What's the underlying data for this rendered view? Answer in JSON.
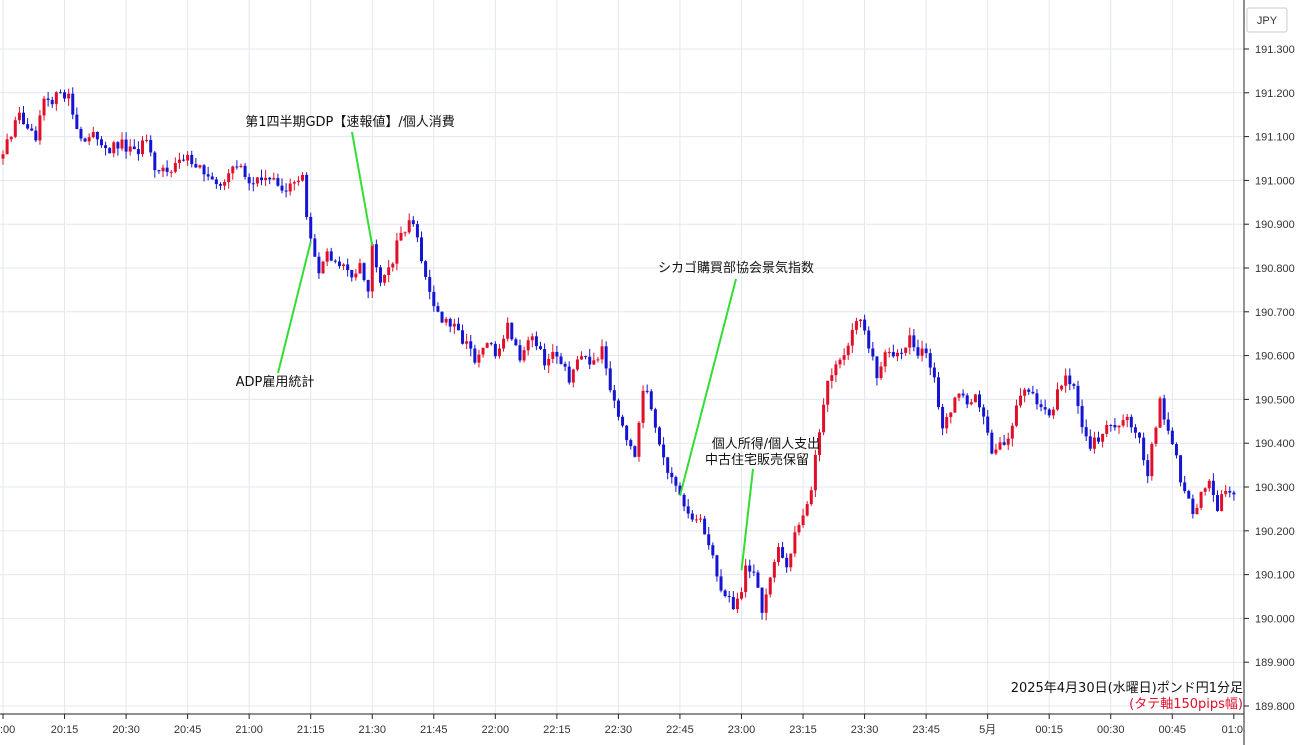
{
  "chart_data": {
    "type": "candlestick",
    "title": "2025年4月30日(水曜日)ポンド円1分足",
    "note": "(タテ軸150pips幅)",
    "unit": "JPY",
    "grid": true,
    "ylim": [
      189.8,
      191.35
    ],
    "yticks": [
      "191.300",
      "191.200",
      "191.100",
      "191.000",
      "190.900",
      "190.800",
      "190.700",
      "190.600",
      "190.500",
      "190.400",
      "190.300",
      "190.200",
      "190.100",
      "190.000",
      "189.900",
      "189.800"
    ],
    "xticks": [
      ":00",
      "20:15",
      "20:30",
      "20:45",
      "21:00",
      "21:15",
      "21:30",
      "21:45",
      "22:00",
      "22:15",
      "22:30",
      "22:45",
      "23:00",
      "23:15",
      "23:30",
      "23:45",
      "5月",
      "00:15",
      "00:30",
      "00:45",
      "01:0"
    ],
    "colors": {
      "up": "#e0102a",
      "down": "#1414d2",
      "grid": "#e3e8ef",
      "annotation_line": "#33dd33"
    },
    "annotations": [
      {
        "text": "第1四半期GDP【速報値】/個人消費",
        "time": "21:30",
        "price": 190.85
      },
      {
        "text": "ADP雇用統計",
        "time": "21:15",
        "price": 190.86
      },
      {
        "text": "シカゴ購買部協会景気指数",
        "time": "22:45",
        "price": 190.28
      },
      {
        "text": "個人所得/個人支出",
        "time": "23:00",
        "price": 190.11
      },
      {
        "text": "中古住宅販売保留",
        "time": "23:00",
        "price": 190.11
      }
    ],
    "path": [
      [
        "20:00",
        191.06
      ],
      [
        "20:02",
        191.1
      ],
      [
        "20:04",
        191.16
      ],
      [
        "20:06",
        191.11
      ],
      [
        "20:08",
        191.09
      ],
      [
        "20:10",
        191.18
      ],
      [
        "20:12",
        191.17
      ],
      [
        "20:14",
        191.21
      ],
      [
        "20:16",
        191.19
      ],
      [
        "20:18",
        191.12
      ],
      [
        "20:20",
        191.09
      ],
      [
        "20:23",
        191.1
      ],
      [
        "20:26",
        191.07
      ],
      [
        "20:29",
        191.08
      ],
      [
        "20:32",
        191.06
      ],
      [
        "20:35",
        191.09
      ],
      [
        "20:37",
        191.01
      ],
      [
        "20:40",
        191.03
      ],
      [
        "20:43",
        191.04
      ],
      [
        "20:46",
        191.05
      ],
      [
        "20:49",
        191.02
      ],
      [
        "20:52",
        190.98
      ],
      [
        "20:55",
        191.02
      ],
      [
        "20:58",
        191.03
      ],
      [
        "21:01",
        190.99
      ],
      [
        "21:04",
        191.01
      ],
      [
        "21:07",
        190.99
      ],
      [
        "21:10",
        190.98
      ],
      [
        "21:13",
        191.02
      ],
      [
        "21:14",
        190.92
      ],
      [
        "21:15",
        190.86
      ],
      [
        "21:17",
        190.78
      ],
      [
        "21:19",
        190.84
      ],
      [
        "21:21",
        190.81
      ],
      [
        "21:23",
        190.8
      ],
      [
        "21:25",
        190.78
      ],
      [
        "21:27",
        190.82
      ],
      [
        "21:29",
        190.75
      ],
      [
        "21:30",
        190.85
      ],
      [
        "21:32",
        190.78
      ],
      [
        "21:35",
        190.82
      ],
      [
        "21:37",
        190.88
      ],
      [
        "21:39",
        190.91
      ],
      [
        "21:41",
        190.87
      ],
      [
        "21:43",
        190.78
      ],
      [
        "21:45",
        190.72
      ],
      [
        "21:47",
        190.68
      ],
      [
        "21:50",
        190.66
      ],
      [
        "21:53",
        190.63
      ],
      [
        "21:55",
        190.58
      ],
      [
        "21:58",
        190.63
      ],
      [
        "22:00",
        190.6
      ],
      [
        "22:03",
        190.67
      ],
      [
        "22:06",
        190.6
      ],
      [
        "22:09",
        190.65
      ],
      [
        "22:12",
        190.58
      ],
      [
        "22:15",
        190.61
      ],
      [
        "22:18",
        190.55
      ],
      [
        "22:20",
        190.59
      ],
      [
        "22:23",
        190.58
      ],
      [
        "22:26",
        190.61
      ],
      [
        "22:28",
        190.53
      ],
      [
        "22:30",
        190.47
      ],
      [
        "22:32",
        190.42
      ],
      [
        "22:34",
        190.38
      ],
      [
        "22:36",
        190.53
      ],
      [
        "22:38",
        190.48
      ],
      [
        "22:40",
        190.41
      ],
      [
        "22:42",
        190.34
      ],
      [
        "22:44",
        190.29
      ],
      [
        "22:46",
        190.25
      ],
      [
        "22:48",
        190.22
      ],
      [
        "22:50",
        190.23
      ],
      [
        "22:52",
        190.16
      ],
      [
        "22:54",
        190.1
      ],
      [
        "22:56",
        190.05
      ],
      [
        "22:58",
        190.03
      ],
      [
        "23:00",
        190.06
      ],
      [
        "23:01",
        190.12
      ],
      [
        "23:03",
        190.11
      ],
      [
        "23:05",
        190.02
      ],
      [
        "23:07",
        190.09
      ],
      [
        "23:09",
        190.15
      ],
      [
        "23:11",
        190.12
      ],
      [
        "23:13",
        190.2
      ],
      [
        "23:15",
        190.24
      ],
      [
        "23:17",
        190.29
      ],
      [
        "23:19",
        190.43
      ],
      [
        "23:21",
        190.55
      ],
      [
        "23:23",
        190.58
      ],
      [
        "23:25",
        190.6
      ],
      [
        "23:27",
        190.66
      ],
      [
        "23:29",
        190.68
      ],
      [
        "23:31",
        190.62
      ],
      [
        "23:33",
        190.55
      ],
      [
        "23:35",
        190.6
      ],
      [
        "23:37",
        190.61
      ],
      [
        "23:39",
        190.62
      ],
      [
        "23:41",
        190.64
      ],
      [
        "23:43",
        190.6
      ],
      [
        "23:45",
        190.61
      ],
      [
        "23:47",
        190.55
      ],
      [
        "23:49",
        190.42
      ],
      [
        "23:51",
        190.48
      ],
      [
        "23:53",
        190.52
      ],
      [
        "23:55",
        190.49
      ],
      [
        "23:57",
        190.52
      ],
      [
        "23:59",
        190.46
      ],
      [
        "00:01",
        190.37
      ],
      [
        "00:03",
        190.4
      ],
      [
        "00:05",
        190.42
      ],
      [
        "00:07",
        190.48
      ],
      [
        "00:09",
        190.53
      ],
      [
        "00:11",
        190.52
      ],
      [
        "00:13",
        190.48
      ],
      [
        "00:15",
        190.45
      ],
      [
        "00:17",
        190.52
      ],
      [
        "00:19",
        190.56
      ],
      [
        "00:21",
        190.52
      ],
      [
        "00:23",
        190.44
      ],
      [
        "00:25",
        190.4
      ],
      [
        "00:27",
        190.41
      ],
      [
        "00:29",
        190.43
      ],
      [
        "00:31",
        190.44
      ],
      [
        "00:33",
        190.46
      ],
      [
        "00:35",
        190.45
      ],
      [
        "00:37",
        190.41
      ],
      [
        "00:39",
        190.33
      ],
      [
        "00:41",
        190.44
      ],
      [
        "00:42",
        190.5
      ],
      [
        "00:44",
        190.42
      ],
      [
        "00:46",
        190.36
      ],
      [
        "00:48",
        190.28
      ],
      [
        "00:50",
        190.25
      ],
      [
        "00:52",
        190.28
      ],
      [
        "00:54",
        190.32
      ],
      [
        "00:56",
        190.24
      ],
      [
        "00:58",
        190.3
      ],
      [
        "01:00",
        190.27
      ]
    ]
  }
}
